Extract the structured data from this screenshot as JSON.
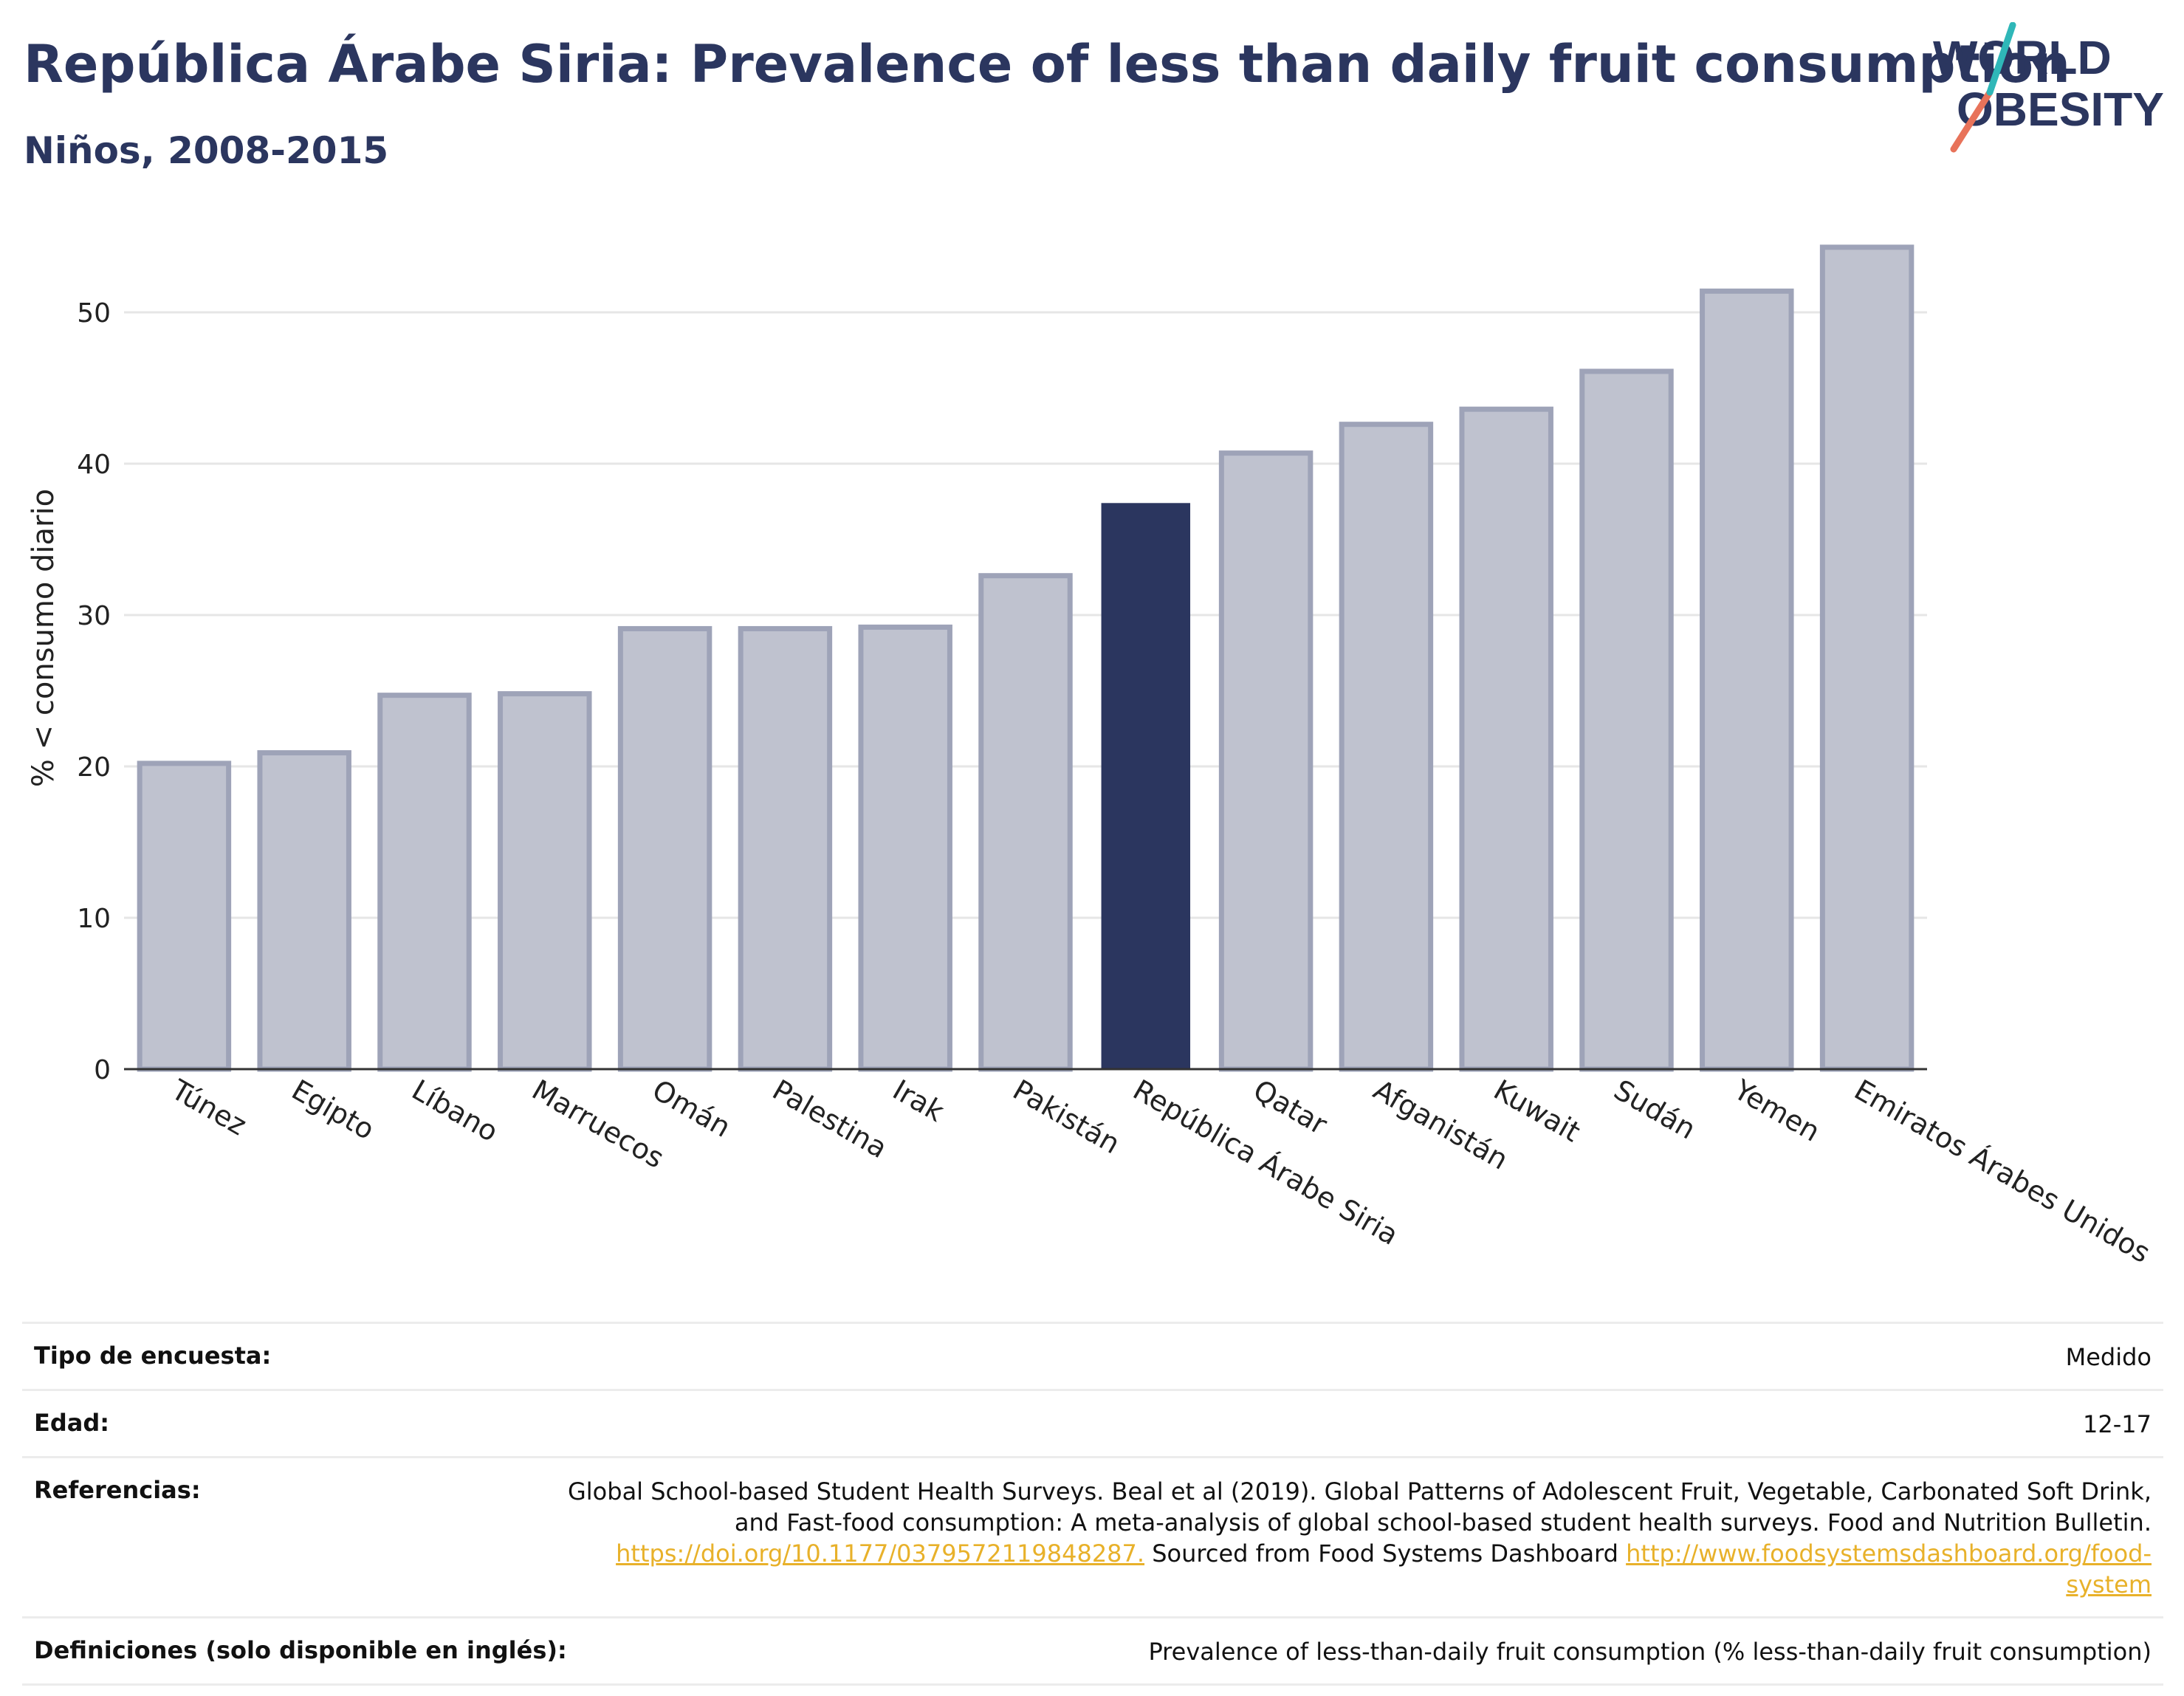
{
  "header": {
    "title": "República Árabe Siria: Prevalence of less than daily fruit consumption",
    "subtitle": "Niños, 2008-2015"
  },
  "logo": {
    "line1": "WORLD",
    "line2": "OBESITY"
  },
  "colors": {
    "highlight": "#2b365f",
    "bar": "#bfc2cf",
    "bar_border": "#9ea3b8",
    "title": "#2b365f",
    "link": "#e8b12a"
  },
  "chart_data": {
    "type": "bar",
    "categories": [
      "Túnez",
      "Egipto",
      "Líbano",
      "Marruecos",
      "Omán",
      "Palestina",
      "Irak",
      "Pakistán",
      "República Árabe Siria",
      "Qatar",
      "Afganistán",
      "Kuwait",
      "Sudán",
      "Yemen",
      "Emiratos Árabes Unidos"
    ],
    "values": [
      20.2,
      20.9,
      24.7,
      24.8,
      29.1,
      29.1,
      29.2,
      32.6,
      37.4,
      40.7,
      42.6,
      43.6,
      46.1,
      51.4,
      54.3
    ],
    "highlight": "República Árabe Siria",
    "ylabel": "% < consumo diario",
    "xlabel": "",
    "ylim": [
      0,
      56
    ],
    "yticks": [
      0,
      10,
      20,
      30,
      40,
      50
    ],
    "grid": true
  },
  "info": {
    "survey_label": "Tipo de encuesta:",
    "survey_value": "Medido",
    "age_label": "Edad:",
    "age_value": "12-17",
    "refs_label": "Referencias:",
    "refs_text1": "Global School-based Student Health Surveys. Beal et al (2019). Global Patterns of Adolescent Fruit, Vegetable, Carbonated Soft Drink, and Fast-food consumption: A meta-analysis of global school-based student health surveys. Food and Nutrition Bulletin. ",
    "refs_link1": "https://doi.org/10.1177/0379572119848287.",
    "refs_text2": " Sourced from Food Systems Dashboard ",
    "refs_link2": "http://www.foodsystemsdashboard.org/food-system",
    "defs_label": "Definiciones (solo disponible en inglés):",
    "defs_value": "Prevalence of less-than-daily fruit consumption (% less-than-daily fruit consumption)"
  }
}
